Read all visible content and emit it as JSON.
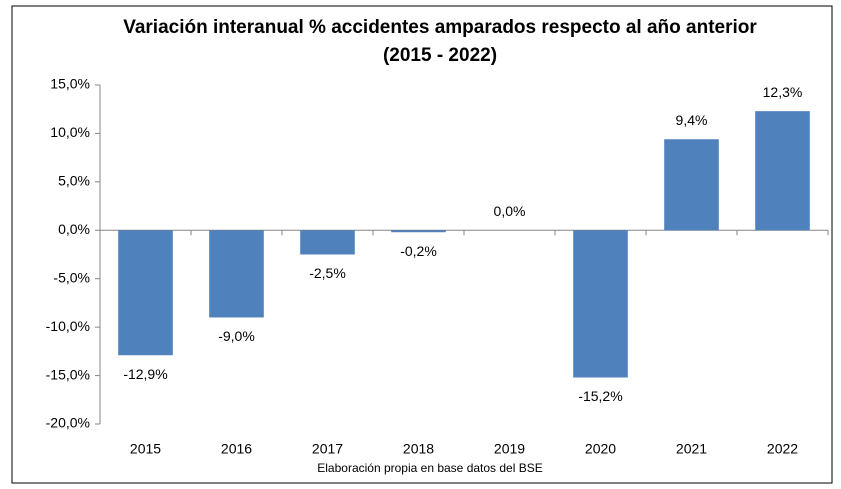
{
  "chart_data": {
    "type": "bar",
    "title": "Variación interanual % accidentes amparados respecto al año anterior (2015 - 2022)",
    "note": "Elaboración propia en base  datos del BSE",
    "categories": [
      "2015",
      "2016",
      "2017",
      "2018",
      "2019",
      "2020",
      "2021",
      "2022"
    ],
    "values": [
      -12.9,
      -9.0,
      -2.5,
      -0.2,
      0.0,
      -15.2,
      9.4,
      12.3
    ],
    "value_labels": [
      "-12,9%",
      "-9,0%",
      "-2,5%",
      "-0,2%",
      "0,0%",
      "-15,2%",
      "9,4%",
      "12,3%"
    ],
    "color": "#4f81bd",
    "ylim": [
      -20,
      15
    ],
    "yticks": [
      {
        "value": -20,
        "label": "-20,0%"
      },
      {
        "value": -15,
        "label": "-15,0%"
      },
      {
        "value": -10,
        "label": "-10,0%"
      },
      {
        "value": -5,
        "label": "-5,0%"
      },
      {
        "value": 0,
        "label": "0,0%"
      },
      {
        "value": 5,
        "label": "5,0%"
      },
      {
        "value": 10,
        "label": "10,0%"
      },
      {
        "value": 15,
        "label": "15,0%"
      }
    ],
    "grid": false
  }
}
